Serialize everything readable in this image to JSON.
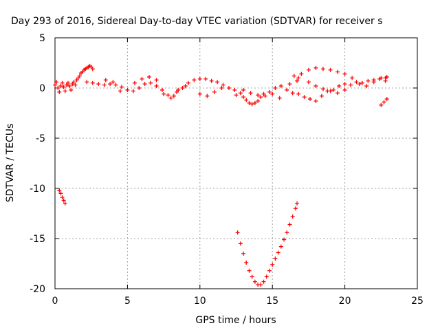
{
  "chart_data": {
    "type": "scatter",
    "title": "Day 293 of 2016, Sidereal Day-to-day VTEC variation (SDTVAR) for receiver s",
    "xlabel": "GPS time / hours",
    "ylabel": "SDTVAR / TECUs",
    "xlim": [
      0,
      25
    ],
    "ylim": [
      -20,
      5
    ],
    "xticks": [
      0,
      5,
      10,
      15,
      20,
      25
    ],
    "yticks": [
      5,
      0,
      -5,
      -10,
      -15,
      -20
    ],
    "grid": true,
    "marker": "plus",
    "color": "#ff0000",
    "series": [
      {
        "points": [
          [
            0.0,
            0.3
          ],
          [
            0.1,
            0.6
          ],
          [
            0.2,
            0.0
          ],
          [
            0.3,
            -0.4
          ],
          [
            0.4,
            0.2
          ],
          [
            0.5,
            0.5
          ],
          [
            0.6,
            0.1
          ],
          [
            0.7,
            -0.3
          ],
          [
            0.8,
            0.3
          ],
          [
            0.9,
            0.5
          ],
          [
            1.0,
            0.2
          ],
          [
            1.1,
            -0.2
          ],
          [
            1.2,
            0.4
          ],
          [
            1.3,
            0.6
          ],
          [
            1.4,
            0.3
          ],
          [
            1.5,
            0.8
          ],
          [
            1.6,
            1.0
          ],
          [
            1.7,
            1.2
          ],
          [
            1.8,
            1.5
          ],
          [
            1.9,
            1.6
          ],
          [
            2.0,
            1.8
          ],
          [
            2.1,
            1.9
          ],
          [
            2.2,
            2.0
          ],
          [
            2.3,
            2.1
          ],
          [
            2.4,
            2.2
          ],
          [
            2.5,
            2.1
          ],
          [
            2.6,
            1.9
          ],
          [
            2.2,
            0.6
          ],
          [
            2.6,
            0.5
          ],
          [
            3.0,
            0.4
          ],
          [
            3.4,
            0.3
          ],
          [
            3.8,
            0.4
          ],
          [
            4.2,
            0.3
          ],
          [
            4.6,
            0.1
          ],
          [
            5.0,
            -0.2
          ],
          [
            5.4,
            -0.3
          ],
          [
            5.8,
            0.0
          ],
          [
            6.2,
            0.4
          ],
          [
            6.6,
            0.5
          ],
          [
            7.0,
            0.2
          ],
          [
            7.4,
            -0.2
          ],
          [
            7.8,
            -0.7
          ],
          [
            8.0,
            -1.0
          ],
          [
            8.2,
            -0.8
          ],
          [
            8.4,
            -0.4
          ],
          [
            8.8,
            0.0
          ],
          [
            9.2,
            0.5
          ],
          [
            9.6,
            0.8
          ],
          [
            10.0,
            0.9
          ],
          [
            10.4,
            0.9
          ],
          [
            10.8,
            0.7
          ],
          [
            11.2,
            0.6
          ],
          [
            11.6,
            0.3
          ],
          [
            12.0,
            0.0
          ],
          [
            12.4,
            -0.2
          ],
          [
            12.8,
            -0.5
          ],
          [
            13.0,
            -0.9
          ],
          [
            13.2,
            -1.2
          ],
          [
            13.4,
            -1.5
          ],
          [
            13.6,
            -1.6
          ],
          [
            13.8,
            -1.5
          ],
          [
            14.0,
            -1.3
          ],
          [
            14.2,
            -0.9
          ],
          [
            14.4,
            -0.6
          ],
          [
            14.8,
            -0.4
          ],
          [
            15.2,
            0.0
          ],
          [
            15.6,
            0.2
          ],
          [
            16.0,
            -0.2
          ],
          [
            16.4,
            -0.5
          ],
          [
            16.8,
            -0.6
          ],
          [
            17.2,
            -0.9
          ],
          [
            17.6,
            -1.1
          ],
          [
            18.0,
            -1.3
          ],
          [
            18.4,
            -0.8
          ],
          [
            18.8,
            -0.3
          ],
          [
            19.2,
            -0.2
          ],
          [
            19.6,
            0.2
          ],
          [
            20.0,
            0.4
          ],
          [
            20.4,
            0.3
          ],
          [
            20.8,
            0.6
          ],
          [
            21.2,
            0.5
          ],
          [
            21.6,
            0.7
          ],
          [
            22.0,
            0.8
          ],
          [
            22.4,
            0.9
          ],
          [
            22.8,
            0.7
          ],
          [
            17.0,
            1.4
          ],
          [
            17.5,
            1.8
          ],
          [
            18.0,
            2.0
          ],
          [
            18.5,
            1.9
          ],
          [
            19.0,
            1.8
          ],
          [
            19.5,
            1.6
          ],
          [
            20.0,
            1.4
          ],
          [
            20.5,
            1.0
          ],
          [
            21.0,
            0.4
          ],
          [
            21.5,
            0.2
          ],
          [
            22.0,
            0.6
          ],
          [
            22.5,
            1.0
          ],
          [
            22.9,
            1.1
          ],
          [
            17.5,
            0.6
          ],
          [
            18.0,
            0.2
          ],
          [
            18.5,
            -0.1
          ],
          [
            19.0,
            -0.3
          ],
          [
            19.5,
            -0.5
          ],
          [
            20.0,
            -0.2
          ],
          [
            16.8,
            1.0
          ],
          [
            16.7,
            0.7
          ],
          [
            16.5,
            1.2
          ],
          [
            6.0,
            0.9
          ],
          [
            6.5,
            1.1
          ],
          [
            7.0,
            0.8
          ],
          [
            10.0,
            -0.6
          ],
          [
            10.5,
            -0.8
          ],
          [
            11.0,
            -0.4
          ],
          [
            11.5,
            0.0
          ],
          [
            13.0,
            -0.2
          ],
          [
            13.5,
            -0.5
          ],
          [
            14.0,
            -0.7
          ],
          [
            14.5,
            -0.8
          ],
          [
            15.0,
            -0.6
          ],
          [
            15.5,
            -1.0
          ],
          [
            3.5,
            0.8
          ],
          [
            4.0,
            0.6
          ],
          [
            4.5,
            -0.3
          ],
          [
            5.5,
            0.5
          ],
          [
            7.5,
            -0.6
          ],
          [
            8.5,
            -0.2
          ],
          [
            9.0,
            0.2
          ],
          [
            12.5,
            -0.7
          ],
          [
            16.2,
            0.4
          ],
          [
            22.8,
            1.0
          ],
          [
            0.3,
            -10.2
          ],
          [
            0.4,
            -10.5
          ],
          [
            0.5,
            -10.9
          ],
          [
            0.6,
            -11.2
          ],
          [
            0.7,
            -11.5
          ],
          [
            12.6,
            -14.4
          ],
          [
            12.8,
            -15.5
          ],
          [
            13.0,
            -16.5
          ],
          [
            13.2,
            -17.4
          ],
          [
            13.4,
            -18.2
          ],
          [
            13.6,
            -18.8
          ],
          [
            13.8,
            -19.3
          ],
          [
            14.0,
            -19.6
          ],
          [
            14.2,
            -19.6
          ],
          [
            14.4,
            -19.3
          ],
          [
            14.6,
            -18.8
          ],
          [
            14.8,
            -18.2
          ],
          [
            15.0,
            -17.6
          ],
          [
            15.2,
            -17.0
          ],
          [
            15.4,
            -16.4
          ],
          [
            15.6,
            -15.8
          ],
          [
            15.8,
            -15.1
          ],
          [
            16.0,
            -14.4
          ],
          [
            16.2,
            -13.6
          ],
          [
            16.4,
            -12.8
          ],
          [
            16.6,
            -12.0
          ],
          [
            16.7,
            -11.5
          ],
          [
            22.5,
            -1.7
          ],
          [
            22.7,
            -1.4
          ],
          [
            22.9,
            -1.1
          ]
        ]
      }
    ]
  }
}
